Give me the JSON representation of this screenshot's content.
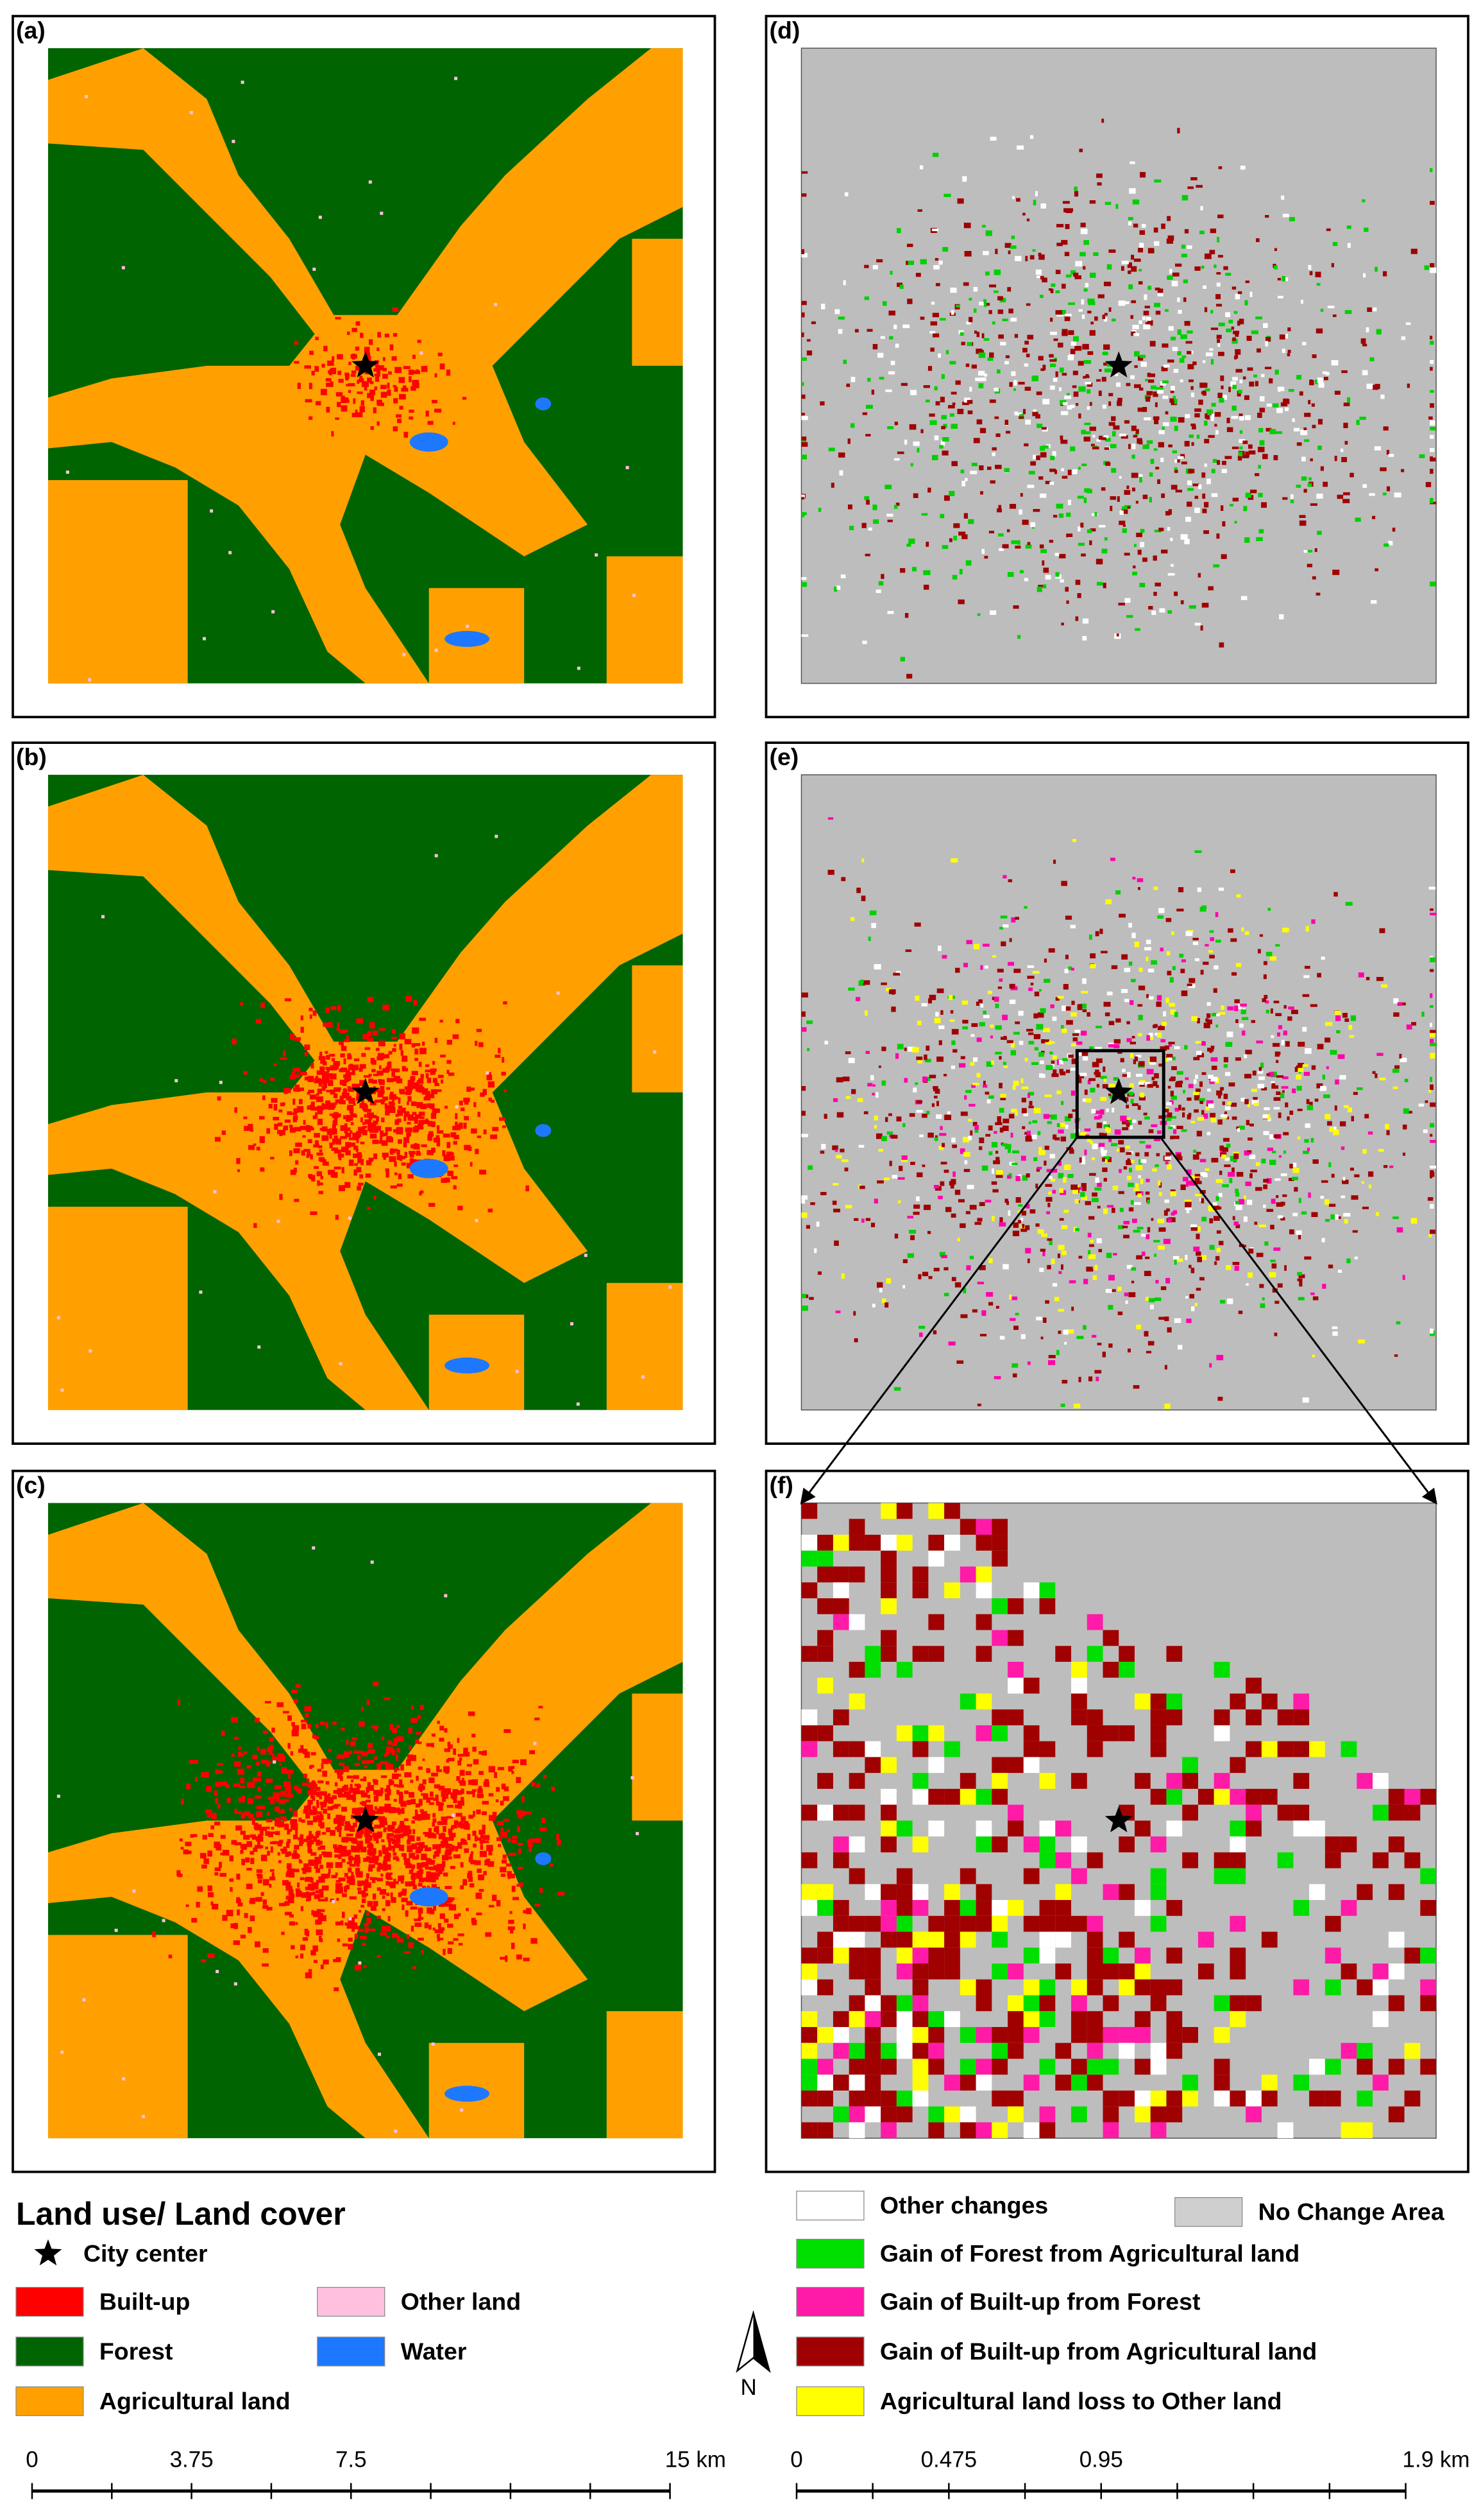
{
  "panels": [
    {
      "label": "(a)"
    },
    {
      "label": "(b)"
    },
    {
      "label": "(c)"
    },
    {
      "label": "(d)"
    },
    {
      "label": "(e)"
    },
    {
      "label": "(f)"
    }
  ],
  "legend_left": {
    "title": "Land use/ Land cover",
    "items": [
      "City center",
      "Built-up",
      "Forest",
      "Agricultural land",
      "Other land",
      "Water"
    ]
  },
  "legend_right": {
    "items": [
      "Other changes",
      "No Change Area",
      "Gain of Forest  from  Agricultural land",
      "Gain of Built-up from Forest",
      "Gain of Built-up from Agricultural land",
      "Agricultural land loss to Other land"
    ]
  },
  "north": "N",
  "scale_left": [
    "0",
    "3.75",
    "7.5",
    "15 km"
  ],
  "scale_right": [
    "0",
    "0.475",
    "0.95",
    "1.9 km"
  ]
}
